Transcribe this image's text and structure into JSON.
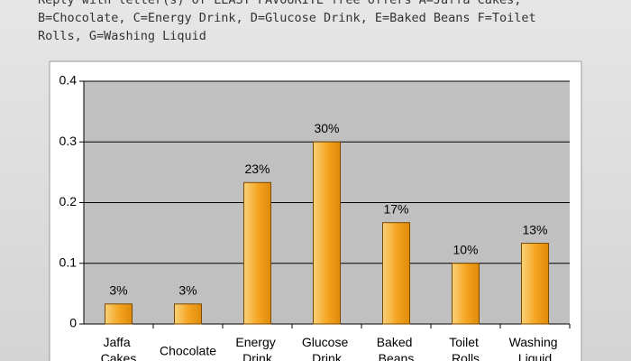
{
  "chart_data": {
    "type": "bar",
    "title": "Reply with letter(s) of LEAST FAVOURITE free offers A=Jaffa Cakes, B=Chocolate, C=Energy Drink, D=Glucose Drink, E=Baked Beans F=Toilet Rolls, G=Washing Liquid",
    "categories": [
      "Jaffa Cakes",
      "Chocolate",
      "Energy Drink",
      "Glucose Drink",
      "Baked Beans",
      "Toilet Rolls",
      "Washing Liquid"
    ],
    "values": [
      0.033,
      0.033,
      0.233,
      0.3,
      0.167,
      0.1,
      0.133
    ],
    "value_labels": [
      "3%",
      "3%",
      "23%",
      "30%",
      "17%",
      "10%",
      "13%"
    ],
    "color": "#f5a623",
    "ylim": [
      0,
      0.4
    ],
    "yticks": [
      0,
      0.1,
      0.2,
      0.3,
      0.4
    ],
    "grid": true
  }
}
